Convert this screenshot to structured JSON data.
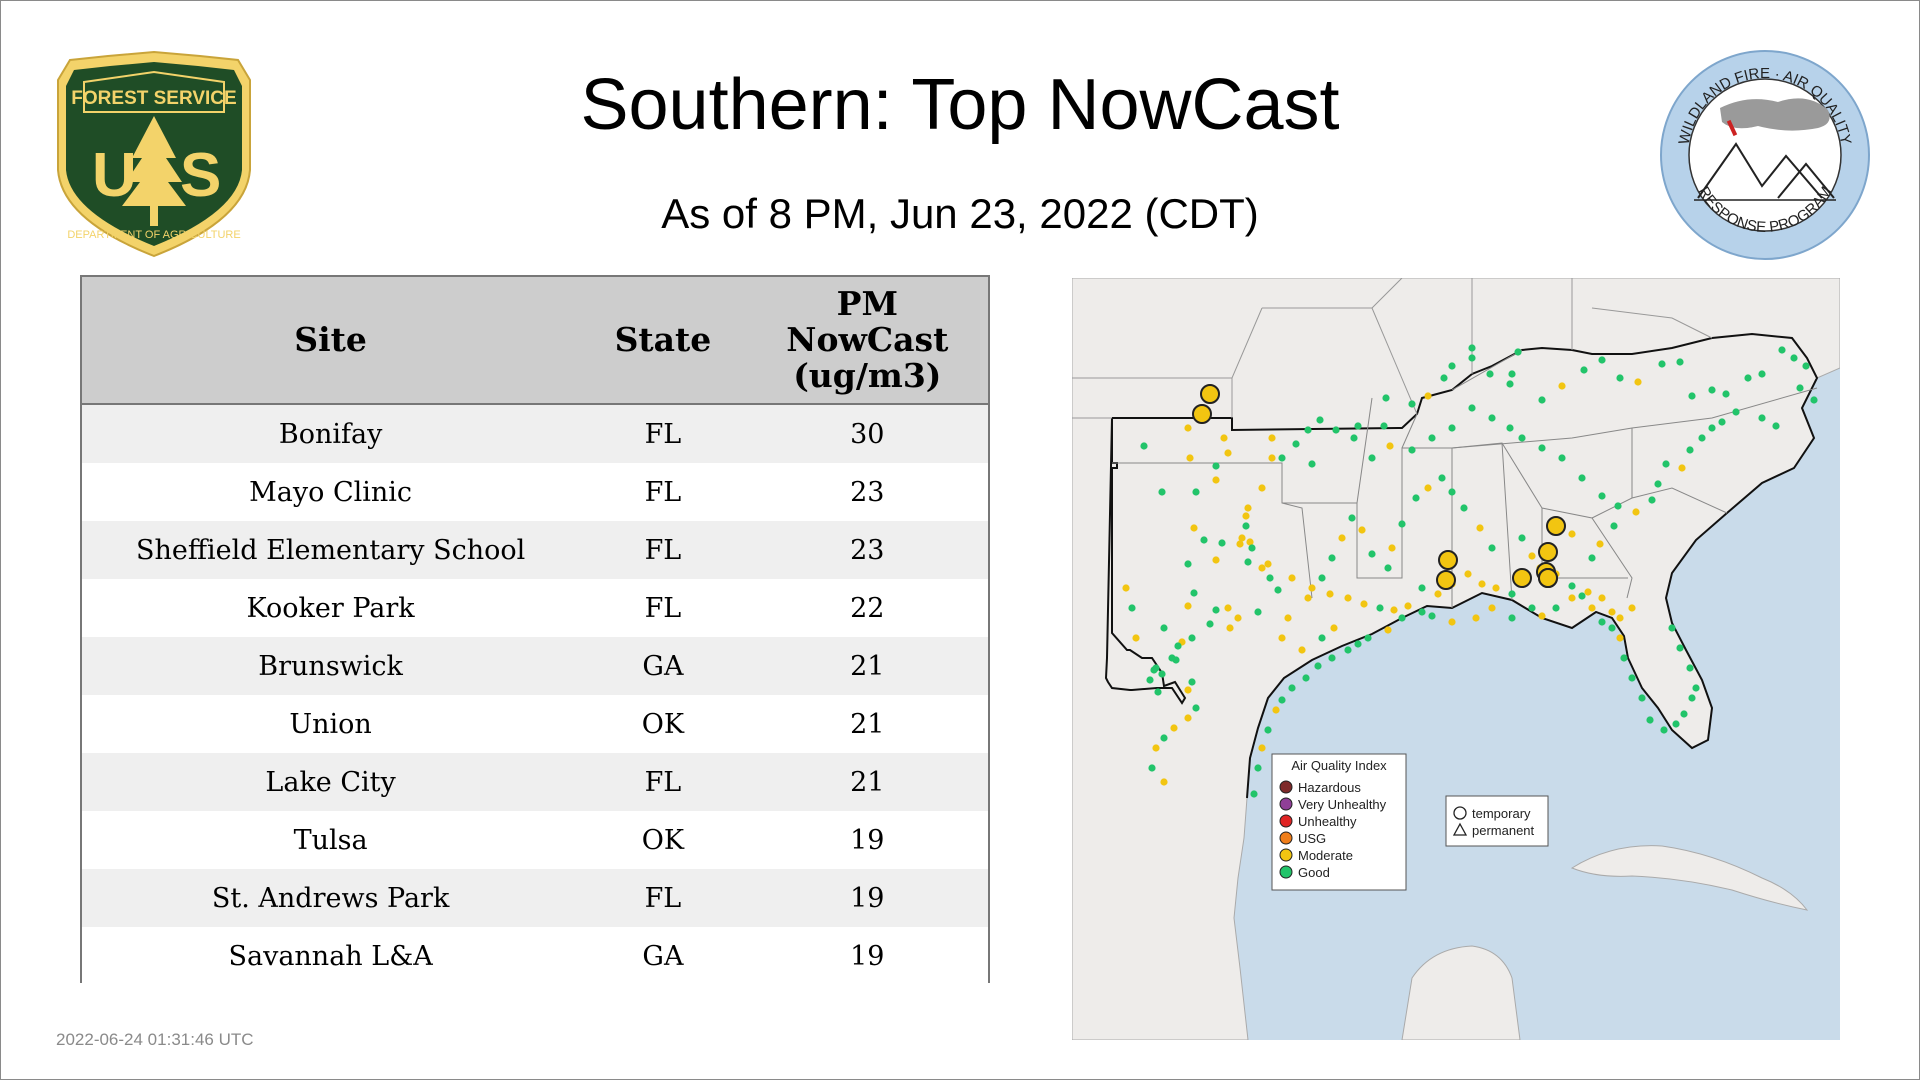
{
  "title": "Southern: Top NowCast",
  "subtitle": "As of  8 PM, Jun 23, 2022 (CDT)",
  "timestamp": "2022-06-24 01:31:46 UTC",
  "logos": {
    "forest_service": {
      "top": "FOREST SERVICE",
      "bottom": "DEPARTMENT OF AGRICULTURE",
      "letters": "U S"
    },
    "wildland": {
      "top": "WILDLAND FIRE · AIR QUALITY",
      "bottom": "RESPONSE PROGRAM"
    }
  },
  "table": {
    "headers": {
      "site": "Site",
      "state": "State",
      "value_line1": "PM",
      "value_line2": "NowCast",
      "value_line3": "(ug/m3)"
    },
    "rows": [
      {
        "site": "Bonifay",
        "state": "FL",
        "value": "30"
      },
      {
        "site": "Mayo Clinic",
        "state": "FL",
        "value": "23"
      },
      {
        "site": "Sheffield Elementary School",
        "state": "FL",
        "value": "23"
      },
      {
        "site": "Kooker Park",
        "state": "FL",
        "value": "22"
      },
      {
        "site": "Brunswick",
        "state": "GA",
        "value": "21"
      },
      {
        "site": "Union",
        "state": "OK",
        "value": "21"
      },
      {
        "site": "Lake City",
        "state": "FL",
        "value": "21"
      },
      {
        "site": "Tulsa",
        "state": "OK",
        "value": "19"
      },
      {
        "site": "St. Andrews Park",
        "state": "FL",
        "value": "19"
      },
      {
        "site": "Savannah L&A",
        "state": "GA",
        "value": "19"
      }
    ]
  },
  "map": {
    "legend": {
      "title": "Air Quality Index",
      "items": [
        {
          "label": "Hazardous",
          "color": "#7e2a2a"
        },
        {
          "label": "Very Unhealthy",
          "color": "#8f3f97"
        },
        {
          "label": "Unhealthy",
          "color": "#e02424"
        },
        {
          "label": "USG",
          "color": "#f07e1a"
        },
        {
          "label": "Moderate",
          "color": "#f2c511"
        },
        {
          "label": "Good",
          "color": "#22c46a"
        }
      ]
    },
    "shape_legend": {
      "temporary": "temporary",
      "permanent": "permanent"
    },
    "colors": {
      "water": "#c9dbea",
      "land": "#eeecea",
      "good": "#22c46a",
      "moderate": "#f2c511"
    }
  }
}
